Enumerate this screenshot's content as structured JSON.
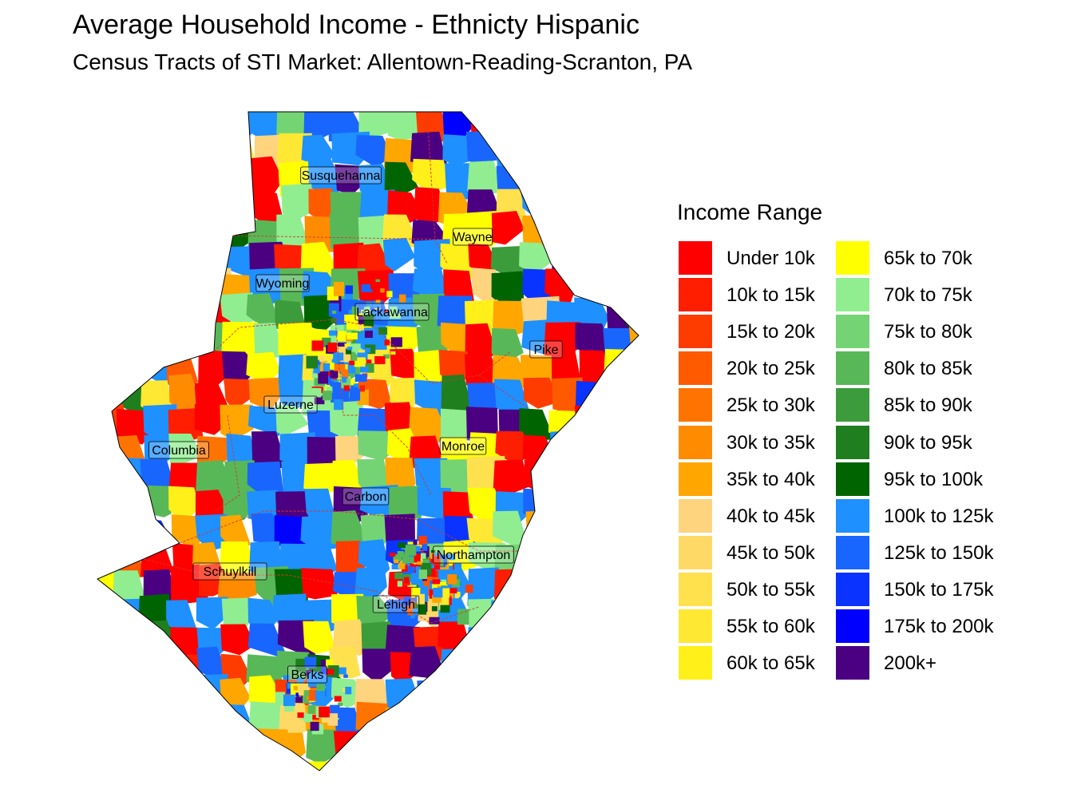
{
  "header": {
    "title": "Average Household Income - Ethnicty Hispanic",
    "subtitle": "Census Tracts of STI Market: Allentown-Reading-Scranton, PA"
  },
  "legend": {
    "title": "Income Range",
    "items": [
      {
        "label": "Under 10k",
        "color": "#ff0000"
      },
      {
        "label": "10k to 15k",
        "color": "#ff1e00"
      },
      {
        "label": "15k to 20k",
        "color": "#ff3c00"
      },
      {
        "label": "20k to 25k",
        "color": "#ff5a00"
      },
      {
        "label": "25k to 30k",
        "color": "#ff7400"
      },
      {
        "label": "30k to 35k",
        "color": "#ff8c00"
      },
      {
        "label": "35k to 40k",
        "color": "#ffa600"
      },
      {
        "label": "40k to 45k",
        "color": "#ffd47f"
      },
      {
        "label": "45k to 50k",
        "color": "#ffd966"
      },
      {
        "label": "50k to 55k",
        "color": "#ffe14d"
      },
      {
        "label": "55k to 60k",
        "color": "#ffe833"
      },
      {
        "label": "60k to 65k",
        "color": "#fff01a"
      },
      {
        "label": "65k to 70k",
        "color": "#ffff00"
      },
      {
        "label": "70k to 75k",
        "color": "#90ee90"
      },
      {
        "label": "75k to 80k",
        "color": "#74d474"
      },
      {
        "label": "80k to 85k",
        "color": "#58b858"
      },
      {
        "label": "85k to 90k",
        "color": "#3c9c3c"
      },
      {
        "label": "90k to 95k",
        "color": "#1f7f1f"
      },
      {
        "label": "95k to 100k",
        "color": "#006400"
      },
      {
        "label": "100k to 125k",
        "color": "#1e90ff"
      },
      {
        "label": "125k to 150k",
        "color": "#1966ff"
      },
      {
        "label": "150k to 175k",
        "color": "#0a33ff"
      },
      {
        "label": "175k to 200k",
        "color": "#0000ff"
      },
      {
        "label": "200k+",
        "color": "#4b0082"
      }
    ]
  },
  "counties": [
    {
      "name": "Susquehanna"
    },
    {
      "name": "Wayne"
    },
    {
      "name": "Wyoming"
    },
    {
      "name": "Lackawanna"
    },
    {
      "name": "Pike"
    },
    {
      "name": "Luzerne"
    },
    {
      "name": "Columbia"
    },
    {
      "name": "Monroe"
    },
    {
      "name": "Carbon"
    },
    {
      "name": "Northampton"
    },
    {
      "name": "Schuylkill"
    },
    {
      "name": "Lehigh"
    },
    {
      "name": "Berks"
    }
  ]
}
